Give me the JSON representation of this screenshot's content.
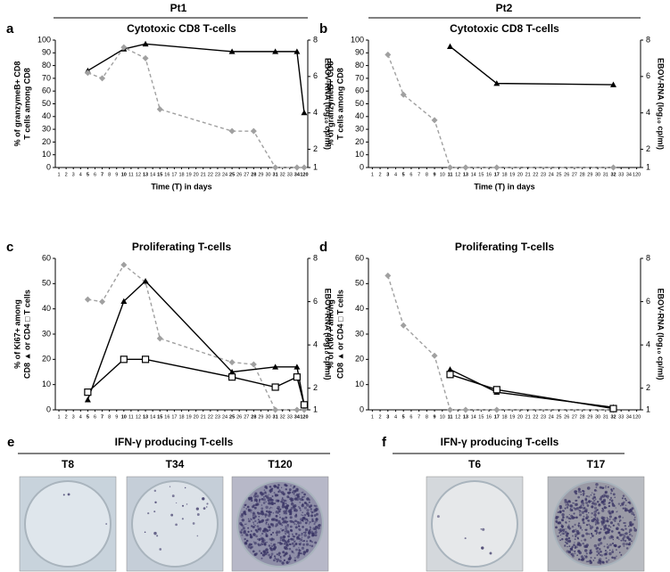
{
  "header": {
    "pt1": "Pt1",
    "pt2": "Pt2"
  },
  "chart_data": [
    {
      "type": "line",
      "panel": "a",
      "title": "Cytotoxic CD8 T-cells",
      "ylabel": [
        "% of granzymeB+ CD8",
        "T cells among CD8"
      ],
      "y2label": "EBOV-RNA (log₁₀ cp/ml)",
      "xlabel": "Time (T) in days",
      "categories": [
        "1",
        "2",
        "3",
        "4",
        "5",
        "6",
        "7",
        "8",
        "9",
        "10",
        "11",
        "12",
        "13",
        "14",
        "15",
        "16",
        "17",
        "18",
        "19",
        "20",
        "21",
        "22",
        "23",
        "24",
        "25",
        "26",
        "27",
        "28",
        "29",
        "30",
        "31",
        "32",
        "33",
        "34",
        "120"
      ],
      "ylim": [
        0,
        100
      ],
      "yticks": [
        0,
        10,
        20,
        30,
        40,
        50,
        60,
        70,
        80,
        90,
        100
      ],
      "y2lim": [
        1,
        8
      ],
      "y2ticks": [
        1,
        2,
        4,
        6,
        8
      ],
      "series": [
        {
          "color": "#000000",
          "marker": "triangle",
          "x": [
            "5",
            "10",
            "13",
            "25",
            "31",
            "34",
            "120"
          ],
          "values": [
            76,
            93,
            97,
            91,
            91,
            91,
            43
          ]
        },
        {
          "color": "#a0a0a0",
          "marker": "diamond",
          "dash": true,
          "axis": "y2",
          "x": [
            "5",
            "7",
            "10",
            "13",
            "15",
            "25",
            "28",
            "31",
            "34",
            "120"
          ],
          "values": [
            6.2,
            5.9,
            7.6,
            7.0,
            4.2,
            3.0,
            3.0,
            1,
            1,
            1
          ]
        }
      ]
    },
    {
      "type": "line",
      "panel": "b",
      "title": "Cytotoxic CD8 T-cells",
      "ylabel": [
        "% of granzymeB+ CD8",
        "T cells among CD8"
      ],
      "y2label": "EBOV-RNA (log₁₀ cp/ml)",
      "xlabel": "Time (T) in days",
      "categories": [
        "1",
        "2",
        "3",
        "4",
        "5",
        "6",
        "7",
        "8",
        "9",
        "10",
        "11",
        "12",
        "13",
        "14",
        "15",
        "16",
        "17",
        "18",
        "19",
        "20",
        "21",
        "22",
        "23",
        "24",
        "25",
        "26",
        "27",
        "28",
        "29",
        "30",
        "31",
        "32",
        "33",
        "34",
        "120"
      ],
      "ylim": [
        0,
        100
      ],
      "yticks": [
        0,
        10,
        20,
        30,
        40,
        50,
        60,
        70,
        80,
        90,
        100
      ],
      "y2lim": [
        1,
        8
      ],
      "y2ticks": [
        1,
        2,
        4,
        6,
        8
      ],
      "series": [
        {
          "color": "#000000",
          "marker": "triangle",
          "x": [
            "11",
            "17",
            "32"
          ],
          "values": [
            95,
            66,
            65
          ]
        },
        {
          "color": "#a0a0a0",
          "marker": "diamond",
          "dash": true,
          "axis": "y2",
          "x": [
            "3",
            "5",
            "9",
            "11",
            "13",
            "17",
            "32"
          ],
          "values": [
            7.2,
            5.0,
            3.6,
            1,
            1,
            1,
            1
          ]
        }
      ]
    },
    {
      "type": "line",
      "panel": "c",
      "title": "Proliferating T-cells",
      "ylabel": [
        "% of Ki67+ among",
        "CD8 ▲ or CD4 □ T cells"
      ],
      "y2label": "EBOV-RNA (log₁₀ cp/ml)",
      "categories": [
        "1",
        "2",
        "3",
        "4",
        "5",
        "6",
        "7",
        "8",
        "9",
        "10",
        "11",
        "12",
        "13",
        "14",
        "15",
        "16",
        "17",
        "18",
        "19",
        "20",
        "21",
        "22",
        "23",
        "24",
        "25",
        "26",
        "27",
        "28",
        "29",
        "30",
        "31",
        "32",
        "33",
        "34",
        "120"
      ],
      "ylim": [
        0,
        60
      ],
      "yticks": [
        0,
        10,
        20,
        30,
        40,
        50,
        60
      ],
      "y2lim": [
        1,
        8
      ],
      "y2ticks": [
        1,
        2,
        4,
        6,
        8
      ],
      "series": [
        {
          "color": "#a0a0a0",
          "marker": "diamond",
          "dash": true,
          "axis": "y2",
          "x": [
            "5",
            "7",
            "10",
            "13",
            "15",
            "25",
            "28",
            "31",
            "34",
            "120"
          ],
          "values": [
            6.1,
            6.0,
            7.7,
            6.9,
            4.3,
            3.2,
            3.1,
            1,
            1,
            1
          ]
        },
        {
          "color": "#000000",
          "marker": "triangle",
          "x": [
            "5",
            "10",
            "13",
            "25",
            "31",
            "34",
            "120"
          ],
          "values": [
            4,
            43,
            51,
            15,
            17,
            17,
            2
          ]
        },
        {
          "color": "#000000",
          "marker": "square",
          "x": [
            "5",
            "10",
            "13",
            "25",
            "31",
            "34",
            "120"
          ],
          "values": [
            7,
            20,
            20,
            13,
            9,
            13,
            2
          ]
        }
      ]
    },
    {
      "type": "line",
      "panel": "d",
      "title": "Proliferating T-cells",
      "ylabel": [
        "% of Ki67+ among",
        "CD8 ▲ or CD4 □ T cells"
      ],
      "y2label": "EBOV-RNA (log₁₀ cp/ml)",
      "categories": [
        "1",
        "2",
        "3",
        "4",
        "5",
        "6",
        "7",
        "8",
        "9",
        "10",
        "11",
        "12",
        "13",
        "14",
        "15",
        "16",
        "17",
        "18",
        "19",
        "20",
        "21",
        "22",
        "23",
        "24",
        "25",
        "26",
        "27",
        "28",
        "29",
        "30",
        "31",
        "32",
        "33",
        "34",
        "120"
      ],
      "ylim": [
        0,
        60
      ],
      "yticks": [
        0,
        10,
        20,
        30,
        40,
        50,
        60
      ],
      "y2lim": [
        1,
        8
      ],
      "y2ticks": [
        1,
        2,
        4,
        6,
        8
      ],
      "series": [
        {
          "color": "#a0a0a0",
          "marker": "diamond",
          "dash": true,
          "axis": "y2",
          "x": [
            "3",
            "5",
            "9",
            "11",
            "13",
            "17",
            "32"
          ],
          "values": [
            7.2,
            4.9,
            3.5,
            1,
            1,
            1,
            1
          ]
        },
        {
          "color": "#000000",
          "marker": "triangle",
          "x": [
            "11",
            "17",
            "32"
          ],
          "values": [
            16,
            7,
            1
          ]
        },
        {
          "color": "#000000",
          "marker": "square",
          "x": [
            "11",
            "17",
            "32"
          ],
          "values": [
            14,
            8,
            0.5
          ]
        }
      ]
    }
  ],
  "images": [
    {
      "panel": "e",
      "title": "IFN-γ producing T-cells",
      "wells": [
        "T8",
        "T34",
        "T120"
      ]
    },
    {
      "panel": "f",
      "title": "IFN-γ producing T-cells",
      "wells": [
        "T6",
        "T17"
      ]
    }
  ]
}
